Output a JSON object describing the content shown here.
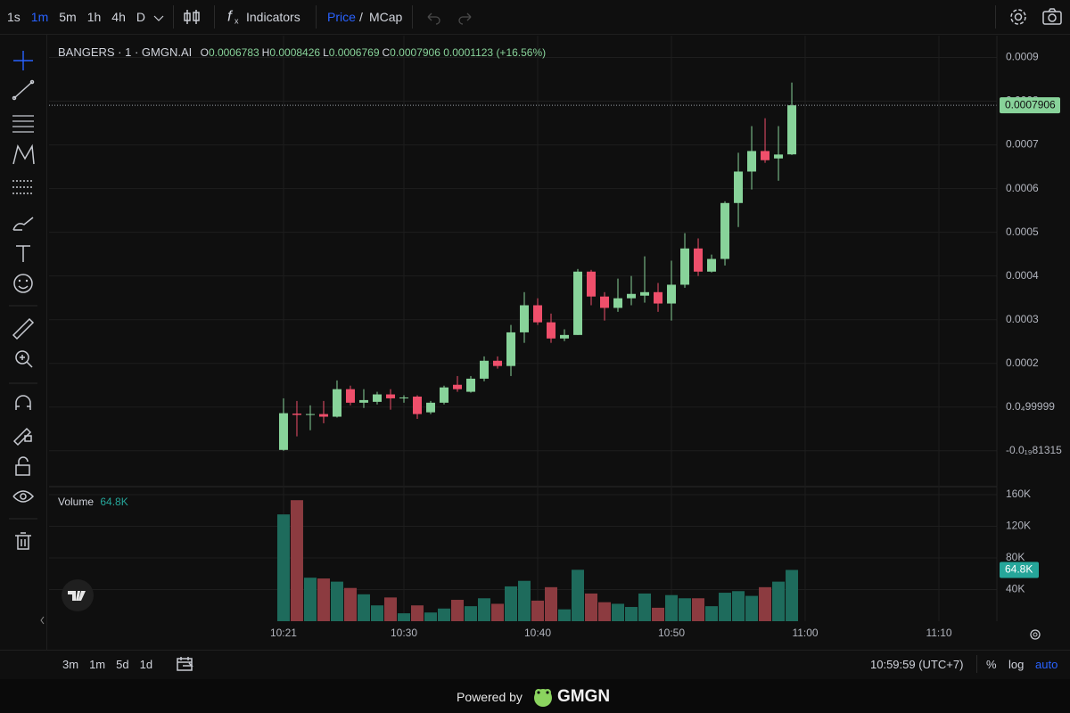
{
  "ui": {
    "intervals": [
      "1s",
      "1m",
      "5m",
      "1h",
      "4h",
      "D"
    ],
    "indicators": "Indicators",
    "price": "Price",
    "slash": "/",
    "mcap": "MCap",
    "ranges": [
      "3m",
      "1m",
      "5d",
      "1d"
    ],
    "clock": "10:59:59 (UTC+7)",
    "percent": "%",
    "log": "log",
    "auto": "auto",
    "powered_by": "Powered by",
    "brand": "GMGN"
  },
  "header": {
    "symbol": "BANGERS · 1 · GMGN.AI",
    "ohlc": [
      {
        "key": "O",
        "value": "0.0006783"
      },
      {
        "key": "H",
        "value": "0.0008426"
      },
      {
        "key": "L",
        "value": "0.0006769"
      },
      {
        "key": "C",
        "value": "0.0007906"
      }
    ],
    "change": "0.0001123",
    "change_pct": "(+16.56%)",
    "last_price_label": "0.0007906"
  },
  "chart_data": [
    {
      "type": "candlestick",
      "up_color": "#88d39a",
      "down_color": "#ef4f6b",
      "open": [
        2e-06,
        8.5e-05,
        8.2e-05,
        8.4e-05,
        7.8e-05,
        0.000141,
        0.00011,
        0.000112,
        0.000129,
        0.00012,
        0.000124,
        8.8e-05,
        0.00011,
        0.000151,
        0.000135,
        0.000165,
        0.000206,
        0.000194,
        0.000271,
        0.000333,
        0.000294,
        0.000257,
        0.000265,
        0.00041,
        0.000353,
        0.000327,
        0.000349,
        0.000355,
        0.000363,
        0.000337,
        0.00038,
        0.000463,
        0.00041,
        0.000439,
        0.000567,
        0.000639,
        0.000686,
        0.000669,
        0.0006783
      ],
      "high": [
        0.00012,
        0.000114,
        0.000104,
        0.000114,
        0.000161,
        0.000149,
        0.000141,
        0.000135,
        0.000141,
        0.000127,
        0.000127,
        0.000114,
        0.000149,
        0.000171,
        0.000171,
        0.000216,
        0.000216,
        0.000288,
        0.000363,
        0.000349,
        0.000314,
        0.000278,
        0.000416,
        0.000414,
        0.000363,
        0.000394,
        0.0004,
        0.000445,
        0.000384,
        0.000435,
        0.000498,
        0.000486,
        0.000449,
        0.000571,
        0.000682,
        0.000743,
        0.000761,
        0.000743,
        0.0008426
      ],
      "low": [
        0,
        3.3e-05,
        4.7e-05,
        6.3e-05,
        7.6e-05,
        0.000104,
        9.8e-05,
        0.000106,
        9.4e-05,
        0.00011,
        7.3e-05,
        8.4e-05,
        0.000106,
        0.000135,
        0.000133,
        0.000159,
        0.000188,
        0.000171,
        0.000247,
        0.000288,
        0.000247,
        0.000251,
        0.000265,
        0.000333,
        0.000298,
        0.000318,
        0.000333,
        0.000339,
        0.000318,
        0.000298,
        0.000373,
        0.0004,
        0.000408,
        0.000424,
        0.000512,
        0.000598,
        0.000659,
        0.000618,
        0.0006769
      ],
      "close": [
        8.6e-05,
        8.2e-05,
        8.4e-05,
        7.8e-05,
        0.000141,
        0.00011,
        0.000116,
        0.000129,
        0.00012,
        0.000122,
        8.4e-05,
        0.00011,
        0.000145,
        0.000141,
        0.000165,
        0.000206,
        0.000194,
        0.000271,
        0.000333,
        0.000294,
        0.000257,
        0.000265,
        0.00041,
        0.000353,
        0.000327,
        0.000349,
        0.000359,
        0.000363,
        0.000337,
        0.00038,
        0.000463,
        0.00041,
        0.000439,
        0.000567,
        0.000639,
        0.000686,
        0.000665,
        0.000678,
        0.0007906
      ],
      "xlim": [
        -17.53,
        53.33
      ],
      "ylim": [
        -8e-05,
        0.00095
      ],
      "yticks": [
        {
          "value": 0,
          "label": "-0.0₁₉81315"
        },
        {
          "value": 0.0001,
          "label": "0.0₄99999"
        },
        0.0002,
        0.0003,
        0.0004,
        0.0005,
        0.0006,
        0.0007,
        0.0008,
        0.0009
      ],
      "grid": true
    },
    {
      "type": "bar",
      "title": "Volume",
      "current_label": "64.8K",
      "up_color": "#1e6b5c",
      "down_color": "#8c3b40",
      "label_color": "#26a69a",
      "values": [
        135000,
        153000,
        55000,
        54000,
        50000,
        42000,
        34000,
        20000,
        30000,
        10000,
        20000,
        11000,
        16000,
        27000,
        19000,
        29000,
        22000,
        44000,
        51000,
        26000,
        43000,
        15000,
        65000,
        35000,
        24000,
        22000,
        18000,
        35000,
        17000,
        33000,
        29000,
        29000,
        19000,
        36000,
        38000,
        32000,
        43000,
        50000,
        64800
      ],
      "xlim": [
        -17.53,
        53.33
      ],
      "ylim": [
        0,
        169000
      ],
      "yticks": [
        {
          "value": 40000,
          "label": "40K"
        },
        {
          "value": 80000,
          "label": "80K"
        },
        {
          "value": 120000,
          "label": "120K"
        },
        {
          "value": 160000,
          "label": "160K"
        }
      ],
      "xticks": [
        {
          "value": 0,
          "label": "10:21"
        },
        {
          "value": 9,
          "label": "10:30"
        },
        {
          "value": 19,
          "label": "10:40"
        },
        {
          "value": 29,
          "label": "10:50"
        },
        {
          "value": 39,
          "label": "11:00"
        },
        {
          "value": 49,
          "label": "11:10"
        }
      ],
      "grid": true
    }
  ]
}
